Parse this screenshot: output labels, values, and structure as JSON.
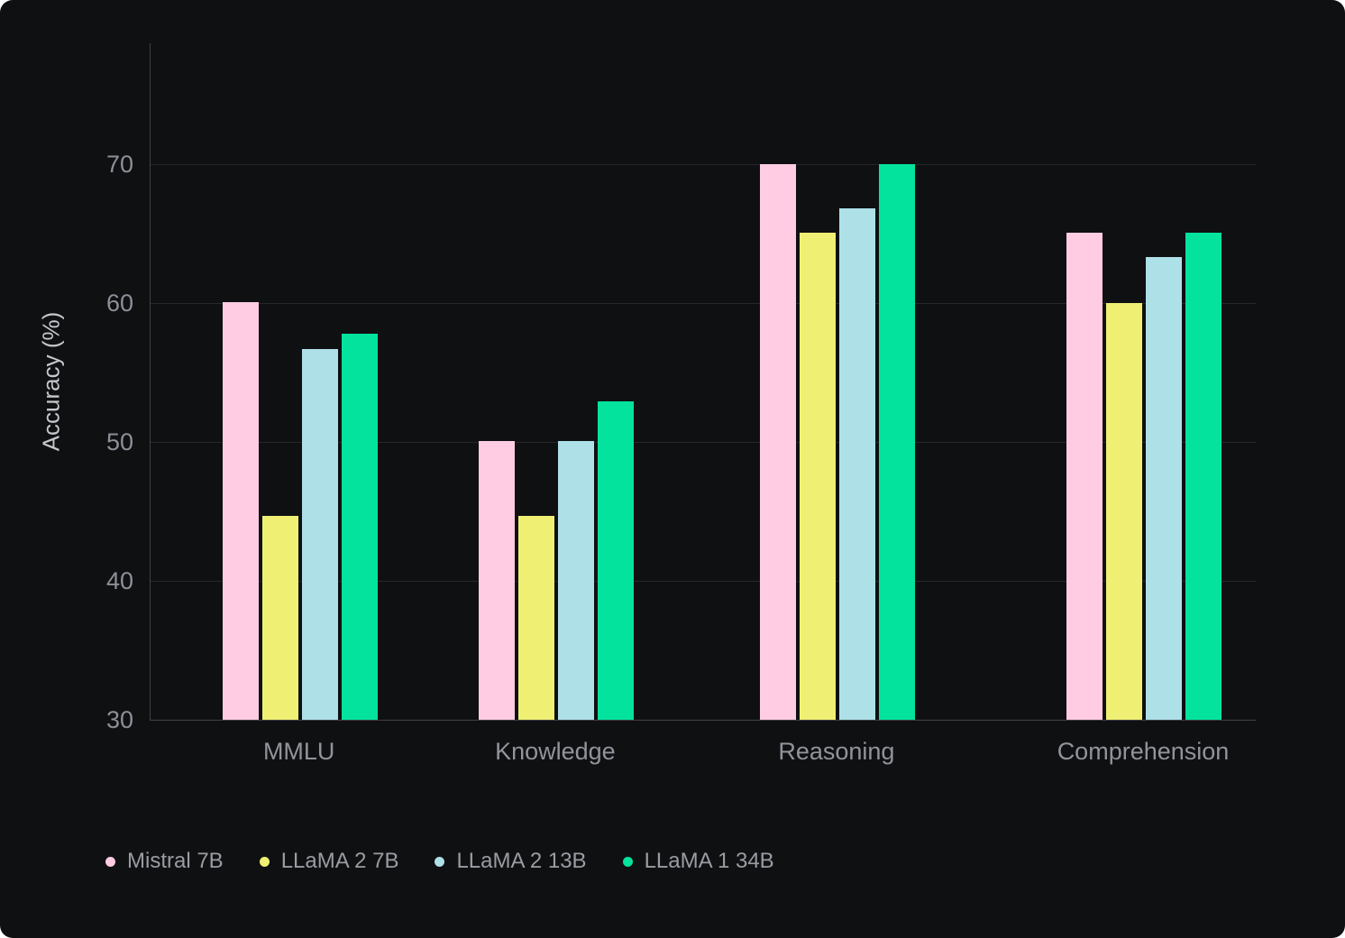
{
  "chart_data": {
    "type": "bar",
    "title": "",
    "xlabel": "",
    "ylabel": "Accuracy (%)",
    "categories": [
      "MMLU",
      "Knowledge",
      "Reasoning",
      "Comprehension"
    ],
    "series": [
      {
        "name": "Mistral 7B",
        "color": "#ffcce3",
        "values": [
          60.1,
          50.1,
          70.0,
          65.1
        ]
      },
      {
        "name": "LLaMA 2 7B",
        "color": "#eff073",
        "values": [
          44.7,
          44.7,
          65.1,
          60.0
        ]
      },
      {
        "name": "LLaMA 2 13B",
        "color": "#aee0e8",
        "values": [
          56.7,
          50.1,
          66.8,
          63.3
        ]
      },
      {
        "name": "LLaMA 1 34B",
        "color": "#03e39e",
        "values": [
          57.8,
          52.9,
          70.0,
          65.1
        ]
      }
    ],
    "ylim": [
      30,
      78.7
    ],
    "yticks": [
      30,
      40,
      50,
      60,
      70
    ],
    "grid": true,
    "legend_position": "bottom-left",
    "theme": {
      "panel_background": "#0f1012",
      "gridline_color": "#26272b",
      "axis_line_color": "#414247",
      "tick_label_color": "#8e8f97",
      "category_label_color": "#92939b",
      "axis_title_color": "#c6c7cc",
      "legend_text_color": "#9b9ca3"
    }
  }
}
